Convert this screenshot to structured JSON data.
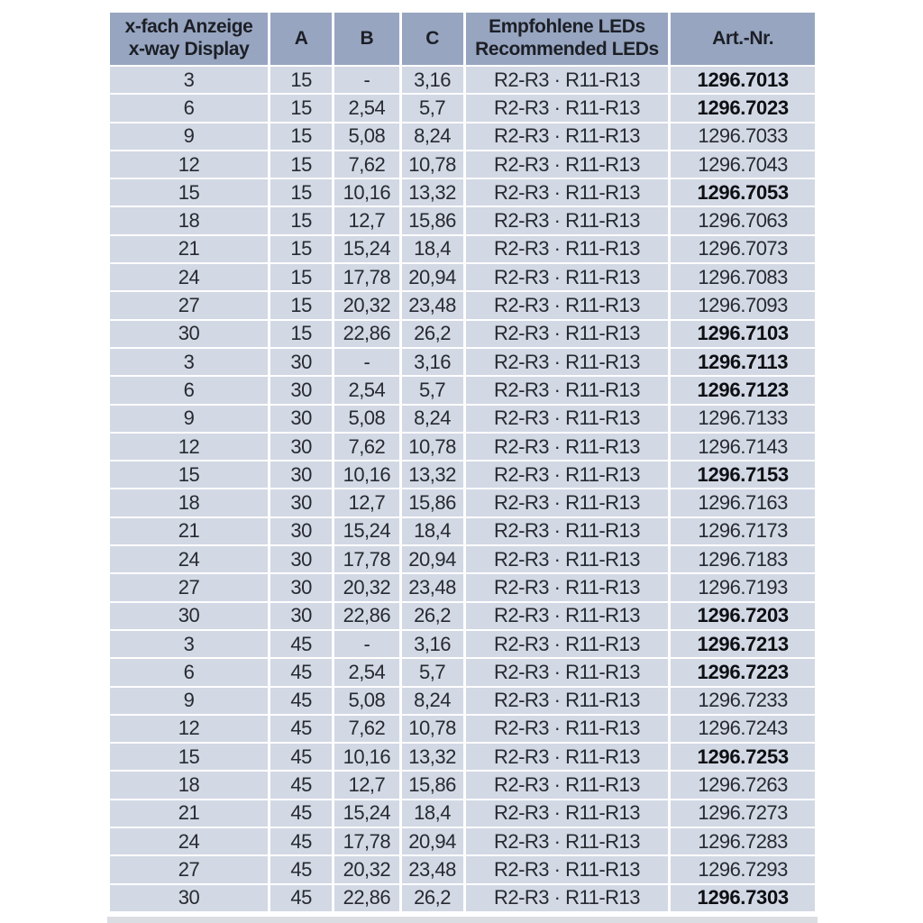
{
  "table": {
    "header": {
      "col_display_line1": "x-fach Anzeige",
      "col_display_line2": "x-way Display",
      "col_a": "A",
      "col_b": "B",
      "col_c": "C",
      "col_leds_line1": "Empfohlene LEDs",
      "col_leds_line2": "Recommended LEDs",
      "col_art": "Art.-Nr."
    },
    "colors": {
      "header_bg": "#97a5c0",
      "row_bg": "#d2d8e4",
      "separator": "#ffffff",
      "header_text": "#1c1f26",
      "body_text": "#272a30",
      "bold_art_text": "#0d0f13"
    },
    "rows": [
      {
        "display": "3",
        "a": "15",
        "b": "-",
        "c": "3,16",
        "leds": "R2-R3 · R11-R13",
        "art": "1296.7013",
        "art_bold": true
      },
      {
        "display": "6",
        "a": "15",
        "b": "2,54",
        "c": "5,7",
        "leds": "R2-R3 · R11-R13",
        "art": "1296.7023",
        "art_bold": true
      },
      {
        "display": "9",
        "a": "15",
        "b": "5,08",
        "c": "8,24",
        "leds": "R2-R3 · R11-R13",
        "art": "1296.7033",
        "art_bold": false
      },
      {
        "display": "12",
        "a": "15",
        "b": "7,62",
        "c": "10,78",
        "leds": "R2-R3 · R11-R13",
        "art": "1296.7043",
        "art_bold": false
      },
      {
        "display": "15",
        "a": "15",
        "b": "10,16",
        "c": "13,32",
        "leds": "R2-R3 · R11-R13",
        "art": "1296.7053",
        "art_bold": true
      },
      {
        "display": "18",
        "a": "15",
        "b": "12,7",
        "c": "15,86",
        "leds": "R2-R3 · R11-R13",
        "art": "1296.7063",
        "art_bold": false
      },
      {
        "display": "21",
        "a": "15",
        "b": "15,24",
        "c": "18,4",
        "leds": "R2-R3 · R11-R13",
        "art": "1296.7073",
        "art_bold": false
      },
      {
        "display": "24",
        "a": "15",
        "b": "17,78",
        "c": "20,94",
        "leds": "R2-R3 · R11-R13",
        "art": "1296.7083",
        "art_bold": false
      },
      {
        "display": "27",
        "a": "15",
        "b": "20,32",
        "c": "23,48",
        "leds": "R2-R3 · R11-R13",
        "art": "1296.7093",
        "art_bold": false
      },
      {
        "display": "30",
        "a": "15",
        "b": "22,86",
        "c": "26,2",
        "leds": "R2-R3 · R11-R13",
        "art": "1296.7103",
        "art_bold": true
      },
      {
        "display": "3",
        "a": "30",
        "b": "-",
        "c": "3,16",
        "leds": "R2-R3 · R11-R13",
        "art": "1296.7113",
        "art_bold": true
      },
      {
        "display": "6",
        "a": "30",
        "b": "2,54",
        "c": "5,7",
        "leds": "R2-R3 · R11-R13",
        "art": "1296.7123",
        "art_bold": true
      },
      {
        "display": "9",
        "a": "30",
        "b": "5,08",
        "c": "8,24",
        "leds": "R2-R3 · R11-R13",
        "art": "1296.7133",
        "art_bold": false
      },
      {
        "display": "12",
        "a": "30",
        "b": "7,62",
        "c": "10,78",
        "leds": "R2-R3 · R11-R13",
        "art": "1296.7143",
        "art_bold": false
      },
      {
        "display": "15",
        "a": "30",
        "b": "10,16",
        "c": "13,32",
        "leds": "R2-R3 · R11-R13",
        "art": "1296.7153",
        "art_bold": true
      },
      {
        "display": "18",
        "a": "30",
        "b": "12,7",
        "c": "15,86",
        "leds": "R2-R3 · R11-R13",
        "art": "1296.7163",
        "art_bold": false
      },
      {
        "display": "21",
        "a": "30",
        "b": "15,24",
        "c": "18,4",
        "leds": "R2-R3 · R11-R13",
        "art": "1296.7173",
        "art_bold": false
      },
      {
        "display": "24",
        "a": "30",
        "b": "17,78",
        "c": "20,94",
        "leds": "R2-R3 · R11-R13",
        "art": "1296.7183",
        "art_bold": false
      },
      {
        "display": "27",
        "a": "30",
        "b": "20,32",
        "c": "23,48",
        "leds": "R2-R3 · R11-R13",
        "art": "1296.7193",
        "art_bold": false
      },
      {
        "display": "30",
        "a": "30",
        "b": "22,86",
        "c": "26,2",
        "leds": "R2-R3 · R11-R13",
        "art": "1296.7203",
        "art_bold": true
      },
      {
        "display": "3",
        "a": "45",
        "b": "-",
        "c": "3,16",
        "leds": "R2-R3 · R11-R13",
        "art": "1296.7213",
        "art_bold": true
      },
      {
        "display": "6",
        "a": "45",
        "b": "2,54",
        "c": "5,7",
        "leds": "R2-R3 · R11-R13",
        "art": "1296.7223",
        "art_bold": true
      },
      {
        "display": "9",
        "a": "45",
        "b": "5,08",
        "c": "8,24",
        "leds": "R2-R3 · R11-R13",
        "art": "1296.7233",
        "art_bold": false
      },
      {
        "display": "12",
        "a": "45",
        "b": "7,62",
        "c": "10,78",
        "leds": "R2-R3 · R11-R13",
        "art": "1296.7243",
        "art_bold": false
      },
      {
        "display": "15",
        "a": "45",
        "b": "10,16",
        "c": "13,32",
        "leds": "R2-R3 · R11-R13",
        "art": "1296.7253",
        "art_bold": true
      },
      {
        "display": "18",
        "a": "45",
        "b": "12,7",
        "c": "15,86",
        "leds": "R2-R3 · R11-R13",
        "art": "1296.7263",
        "art_bold": false
      },
      {
        "display": "21",
        "a": "45",
        "b": "15,24",
        "c": "18,4",
        "leds": "R2-R3 · R11-R13",
        "art": "1296.7273",
        "art_bold": false
      },
      {
        "display": "24",
        "a": "45",
        "b": "17,78",
        "c": "20,94",
        "leds": "R2-R3 · R11-R13",
        "art": "1296.7283",
        "art_bold": false
      },
      {
        "display": "27",
        "a": "45",
        "b": "20,32",
        "c": "23,48",
        "leds": "R2-R3 · R11-R13",
        "art": "1296.7293",
        "art_bold": false
      },
      {
        "display": "30",
        "a": "45",
        "b": "22,86",
        "c": "26,2",
        "leds": "R2-R3 · R11-R13",
        "art": "1296.7303",
        "art_bold": true
      }
    ]
  }
}
